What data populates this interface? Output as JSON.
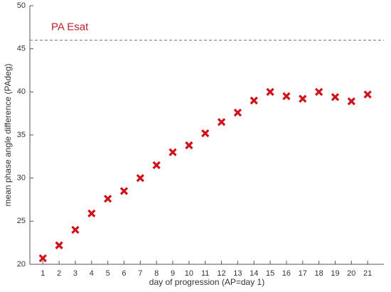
{
  "chart_data": {
    "type": "scatter",
    "xlabel": "day of progression (AP=day 1)",
    "ylabel": "mean phase angle difference (PAdeg)",
    "x": [
      1,
      2,
      3,
      4,
      5,
      6,
      7,
      8,
      9,
      10,
      11,
      12,
      13,
      14,
      15,
      16,
      17,
      18,
      19,
      20,
      21
    ],
    "values": [
      20.7,
      22.2,
      24.0,
      25.9,
      27.6,
      28.5,
      30.0,
      31.5,
      33.0,
      33.8,
      35.2,
      36.5,
      37.6,
      39.0,
      40.0,
      39.5,
      39.2,
      40.0,
      39.4,
      38.9,
      39.7
    ],
    "color": "#d0121b",
    "marker": "x",
    "xlim": [
      0.2,
      22
    ],
    "ylim": [
      20,
      50
    ],
    "xticks": [
      1,
      2,
      3,
      4,
      5,
      6,
      7,
      8,
      9,
      10,
      11,
      12,
      13,
      14,
      15,
      16,
      17,
      18,
      19,
      20,
      21
    ],
    "yticks": [
      20,
      25,
      30,
      35,
      40,
      45,
      50
    ],
    "reference_line": {
      "value": 46,
      "label": "PA Esat",
      "color": "#c0212b"
    }
  }
}
